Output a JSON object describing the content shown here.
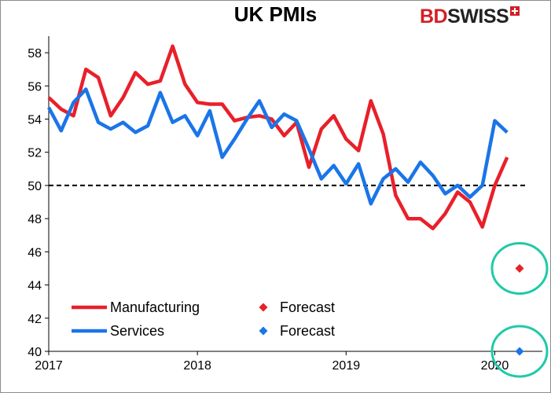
{
  "header": {
    "brand_logo": "BDSWISS",
    "brand_logo_parts": [
      "BD",
      "SWISS"
    ]
  },
  "colors": {
    "manufacturing": "#e8202a",
    "services": "#1a75e8",
    "circle": "#1fcaa8",
    "reference_line": "#000000",
    "brand_red": "#d31f26"
  },
  "chart_data": {
    "type": "line",
    "title": "UK PMIs",
    "xlabel": "",
    "ylabel": "",
    "ylim": [
      40,
      59
    ],
    "xlim": [
      2017.0,
      2020.32
    ],
    "grid": false,
    "y_ticks": [
      40,
      42,
      44,
      46,
      48,
      50,
      52,
      54,
      56,
      58
    ],
    "x_ticks": [
      2017,
      2018,
      2019,
      2020
    ],
    "x_tick_labels": [
      "2017",
      "2018",
      "2019",
      "2020"
    ],
    "reference_line": {
      "y": 50,
      "style": "dashed"
    },
    "series": [
      {
        "name": "Manufacturing",
        "x": [
          "2017-01",
          "2017-02",
          "2017-03",
          "2017-04",
          "2017-05",
          "2017-06",
          "2017-07",
          "2017-08",
          "2017-09",
          "2017-10",
          "2017-11",
          "2017-12",
          "2018-01",
          "2018-02",
          "2018-03",
          "2018-04",
          "2018-05",
          "2018-06",
          "2018-07",
          "2018-08",
          "2018-09",
          "2018-10",
          "2018-11",
          "2018-12",
          "2019-01",
          "2019-02",
          "2019-03",
          "2019-04",
          "2019-05",
          "2019-06",
          "2019-07",
          "2019-08",
          "2019-09",
          "2019-10",
          "2019-11",
          "2019-12",
          "2020-01",
          "2020-02"
        ],
        "values": [
          55.3,
          54.6,
          54.2,
          57.0,
          56.5,
          54.2,
          55.3,
          56.8,
          56.1,
          56.3,
          58.4,
          56.1,
          55.0,
          54.9,
          54.9,
          53.9,
          54.1,
          54.2,
          54.0,
          53.0,
          53.8,
          51.1,
          53.4,
          54.2,
          52.8,
          52.1,
          55.1,
          53.1,
          49.4,
          48.0,
          48.0,
          47.4,
          48.3,
          49.6,
          49.0,
          47.5,
          50.0,
          51.7
        ],
        "color": "manufacturing",
        "forecast": {
          "label": "Forecast",
          "x": "2020-03",
          "value": 45.0
        }
      },
      {
        "name": "Services",
        "x": [
          "2017-01",
          "2017-02",
          "2017-03",
          "2017-04",
          "2017-05",
          "2017-06",
          "2017-07",
          "2017-08",
          "2017-09",
          "2017-10",
          "2017-11",
          "2017-12",
          "2018-01",
          "2018-02",
          "2018-03",
          "2018-04",
          "2018-05",
          "2018-06",
          "2018-07",
          "2018-08",
          "2018-09",
          "2018-10",
          "2018-11",
          "2018-12",
          "2019-01",
          "2019-02",
          "2019-03",
          "2019-04",
          "2019-05",
          "2019-06",
          "2019-07",
          "2019-08",
          "2019-09",
          "2019-10",
          "2019-11",
          "2019-12",
          "2020-01",
          "2020-02"
        ],
        "values": [
          54.7,
          53.3,
          55.0,
          55.8,
          53.8,
          53.4,
          53.8,
          53.2,
          53.6,
          55.6,
          53.8,
          54.2,
          53.0,
          54.5,
          51.7,
          52.8,
          54.0,
          55.1,
          53.5,
          54.3,
          53.9,
          52.2,
          50.4,
          51.2,
          50.1,
          51.3,
          48.9,
          50.4,
          51.0,
          50.2,
          51.4,
          50.6,
          49.5,
          50.0,
          49.3,
          50.0,
          53.9,
          53.2
        ],
        "color": "services",
        "forecast": {
          "label": "Forecast",
          "x": "2020-03",
          "value": 40.0
        }
      }
    ],
    "legend": {
      "placement": "bottom-left",
      "entries": [
        {
          "label": "Manufacturing",
          "marker": "line",
          "color": "manufacturing"
        },
        {
          "label": "Forecast",
          "marker": "diamond",
          "color": "manufacturing"
        },
        {
          "label": "Services",
          "marker": "line",
          "color": "services"
        },
        {
          "label": "Forecast",
          "marker": "diamond",
          "color": "services"
        }
      ]
    },
    "highlight_circles": [
      "manufacturing-forecast",
      "services-forecast"
    ]
  }
}
